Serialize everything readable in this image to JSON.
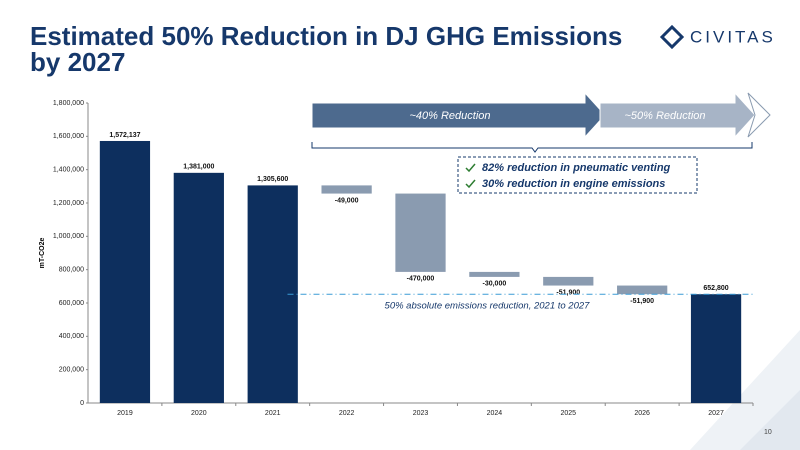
{
  "chart_data": {
    "type": "waterfall",
    "title": "Estimated 50% Reduction in DJ GHG Emissions by 2027",
    "y_label": "mT-CO2e",
    "categories": [
      "2019",
      "2020",
      "2021",
      "2022",
      "2023",
      "2024",
      "2025",
      "2026",
      "2027"
    ],
    "values": [
      1572137,
      1381000,
      1305600,
      -49000,
      -470000,
      -30000,
      -51900,
      -51900,
      652800
    ],
    "value_labels": [
      "1,572,137",
      "1,381,000",
      "1,305,600",
      "-49,000",
      "-470,000",
      "-30,000",
      "-51,900",
      "-51,900",
      "652,800"
    ],
    "total_color": "#0d2f5e",
    "decrease_color": "#8a9bb0",
    "ylim": [
      0,
      1800000
    ],
    "yticks": [
      0,
      {
        "value": 200000,
        "label": "200,000"
      },
      {
        "value": 400000,
        "label": "400,000"
      },
      {
        "value": 600000,
        "label": "600,000"
      },
      {
        "value": 800000,
        "label": "800,000"
      },
      {
        "value": 1000000,
        "label": "1,000,000"
      },
      {
        "value": 1200000,
        "label": "1,200,000"
      },
      {
        "value": 1400000,
        "label": "1,400,000"
      },
      {
        "value": 1600000,
        "label": "1,600,000"
      },
      {
        "value": 1800000,
        "label": "1,800,000"
      }
    ],
    "arrows": [
      "~40% Reduction",
      "~50% Reduction"
    ],
    "callouts": [
      "82% reduction in pneumatic venting",
      "30% reduction in engine emissions"
    ],
    "reference_label": "50% absolute emissions reduction, 2021 to 2027"
  },
  "logo": "CIVITAS",
  "page_number": "10"
}
